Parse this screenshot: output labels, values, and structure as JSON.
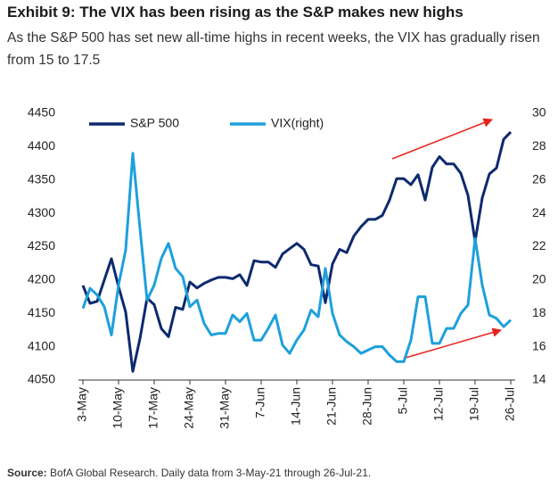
{
  "chart_data": {
    "type": "line",
    "title": "Exhibit 9: The VIX has been rising as the S&P makes new highs",
    "subtitle": "As the S&P 500 has set new all-time highs in recent weeks, the VIX has gradually risen from 15 to 17.5",
    "source_label": "Source:",
    "source": "BofA Global Research. Daily data from 3-May-21 through 26-Jul-21.",
    "categories": [
      "3-May",
      null,
      null,
      null,
      null,
      "10-May",
      null,
      null,
      null,
      null,
      "17-May",
      null,
      null,
      null,
      null,
      "24-May",
      null,
      null,
      null,
      null,
      "31-May",
      null,
      null,
      null,
      null,
      "7-Jun",
      null,
      null,
      null,
      null,
      "14-Jun",
      null,
      null,
      null,
      null,
      "21-Jun",
      null,
      null,
      null,
      null,
      "28-Jun",
      null,
      null,
      null,
      null,
      "5-Jul",
      null,
      null,
      null,
      null,
      "12-Jul",
      null,
      null,
      null,
      null,
      "19-Jul",
      null,
      null,
      null,
      null,
      "26-Jul"
    ],
    "series": [
      {
        "name": "S&P 500",
        "color": "#0d2a6e",
        "values": [
          4192,
          4165,
          4168,
          4200,
          4232,
          4190,
          4152,
          4063,
          4112,
          4173,
          4163,
          4127,
          4115,
          4159,
          4156,
          4197,
          4188,
          4195,
          4200,
          4204,
          4204,
          4202,
          4208,
          4192,
          4229,
          4227,
          4227,
          4219,
          4239,
          4247,
          4255,
          4246,
          4223,
          4221,
          4166,
          4224,
          4246,
          4241,
          4266,
          4280,
          4291,
          4291,
          4297,
          4320,
          4352,
          4352,
          4343,
          4358,
          4320,
          4369,
          4385,
          4374,
          4374,
          4360,
          4327,
          4258,
          4323,
          4359,
          4368,
          4411,
          4422
        ]
      },
      {
        "name": "VIX(right)",
        "color": "#1ea0dc",
        "axis": "y2",
        "values": [
          18.3,
          19.5,
          19.1,
          18.4,
          16.7,
          19.7,
          21.8,
          27.6,
          23.1,
          18.8,
          19.7,
          21.3,
          22.2,
          20.7,
          20.2,
          18.4,
          18.8,
          17.4,
          16.7,
          16.8,
          16.8,
          17.9,
          17.5,
          18.0,
          16.4,
          16.4,
          17.1,
          17.9,
          16.1,
          15.6,
          16.4,
          17.0,
          18.2,
          17.8,
          20.7,
          18.0,
          16.7,
          16.3,
          16.0,
          15.6,
          15.8,
          16.0,
          16.0,
          15.5,
          15.1,
          15.1,
          16.4,
          19.0,
          19.0,
          16.2,
          16.2,
          17.1,
          17.1,
          18.0,
          18.5,
          22.5,
          19.7,
          17.9,
          17.7,
          17.2,
          17.6
        ]
      }
    ],
    "ylim": [
      4050,
      4450
    ],
    "yticks": [
      4050,
      4100,
      4150,
      4200,
      4250,
      4300,
      4350,
      4400,
      4450
    ],
    "y2lim": [
      14,
      30
    ],
    "y2ticks": [
      14,
      16,
      18,
      20,
      22,
      24,
      26,
      28,
      30
    ],
    "grid": false
  }
}
